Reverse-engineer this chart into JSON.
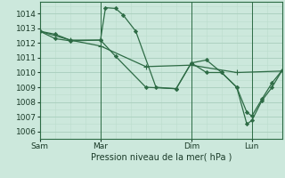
{
  "background_color": "#cce8dc",
  "grid_major_color": "#aacfbe",
  "grid_minor_color": "#bbdccc",
  "vline_color": "#2d6b45",
  "line_color": "#2d6b45",
  "marker_color": "#2d6b45",
  "xlabel": "Pression niveau de la mer( hPa )",
  "ylim": [
    1005.5,
    1014.8
  ],
  "yticks": [
    1006,
    1007,
    1008,
    1009,
    1010,
    1011,
    1012,
    1013,
    1014
  ],
  "xtick_labels": [
    "Sam",
    "Mar",
    "Dim",
    "Lun"
  ],
  "xtick_positions": [
    0,
    24,
    60,
    84
  ],
  "xlim": [
    0,
    96
  ],
  "series1_x": [
    0,
    6,
    12,
    24,
    26,
    30,
    33,
    38,
    46,
    54,
    60,
    66,
    72,
    78,
    82,
    84,
    88,
    92,
    96
  ],
  "series1_y": [
    1012.8,
    1012.6,
    1012.2,
    1012.2,
    1014.4,
    1014.35,
    1013.9,
    1012.8,
    1009.0,
    1008.9,
    1010.65,
    1010.85,
    1010.0,
    1009.0,
    1007.3,
    1007.05,
    1008.2,
    1009.3,
    1010.15
  ],
  "series2_x": [
    0,
    6,
    12,
    24,
    30,
    42,
    54,
    60,
    66,
    72,
    78,
    82,
    84,
    88,
    92,
    96
  ],
  "series2_y": [
    1012.8,
    1012.3,
    1012.15,
    1012.2,
    1011.1,
    1009.0,
    1008.9,
    1010.65,
    1010.0,
    1010.0,
    1009.0,
    1006.5,
    1006.75,
    1008.1,
    1009.0,
    1010.15
  ],
  "series3_x": [
    0,
    12,
    24,
    42,
    60,
    78,
    96
  ],
  "series3_y": [
    1012.8,
    1012.2,
    1011.8,
    1010.4,
    1010.5,
    1010.0,
    1010.1
  ]
}
